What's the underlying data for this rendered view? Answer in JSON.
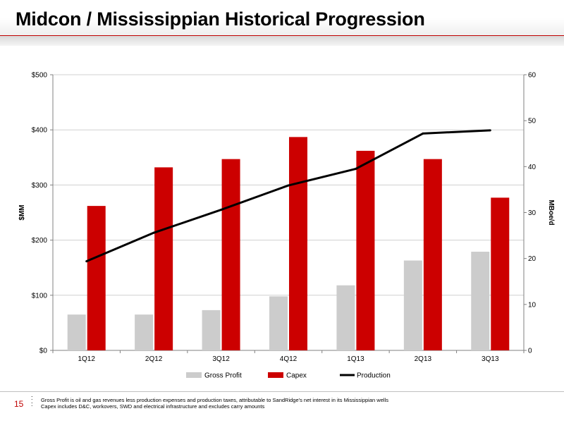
{
  "title": "Midcon / Mississippian Historical Progression",
  "page_number": "15",
  "footnotes": [
    "Gross Profit is oil and gas revenues less production expenses and production taxes, attributable to SandRidge's net interest in its Mississippian wells",
    "Capex includes D&C, workovers, SWD and electrical infrastructure and excludes carry amounts"
  ],
  "colors": {
    "accent": "#c00000",
    "gross_profit": "#cccccc",
    "capex": "#cc0000",
    "production": "#000000"
  },
  "chart_data": {
    "type": "bar",
    "categories": [
      "1Q12",
      "2Q12",
      "3Q12",
      "4Q12",
      "1Q13",
      "2Q13",
      "3Q13"
    ],
    "series": [
      {
        "name": "Gross Profit",
        "type": "bar",
        "axis": "left",
        "values": [
          65,
          65,
          73,
          98,
          118,
          163,
          179
        ]
      },
      {
        "name": "Capex",
        "type": "bar",
        "axis": "left",
        "values": [
          262,
          332,
          347,
          387,
          362,
          347,
          277
        ]
      },
      {
        "name": "Production",
        "type": "line",
        "axis": "right",
        "values": [
          19.4,
          25.6,
          30.6,
          35.9,
          39.5,
          47.2,
          47.9
        ]
      }
    ],
    "ylabel": "$MM",
    "y2label": "MBoe/d",
    "ylim": [
      0,
      500
    ],
    "y2lim": [
      0,
      60
    ],
    "yticks": [
      "$0",
      "$100",
      "$200",
      "$300",
      "$400",
      "$500"
    ],
    "y2ticks": [
      "0",
      "10",
      "20",
      "30",
      "40",
      "50",
      "60"
    ],
    "grid": true,
    "legend": "bottom"
  }
}
